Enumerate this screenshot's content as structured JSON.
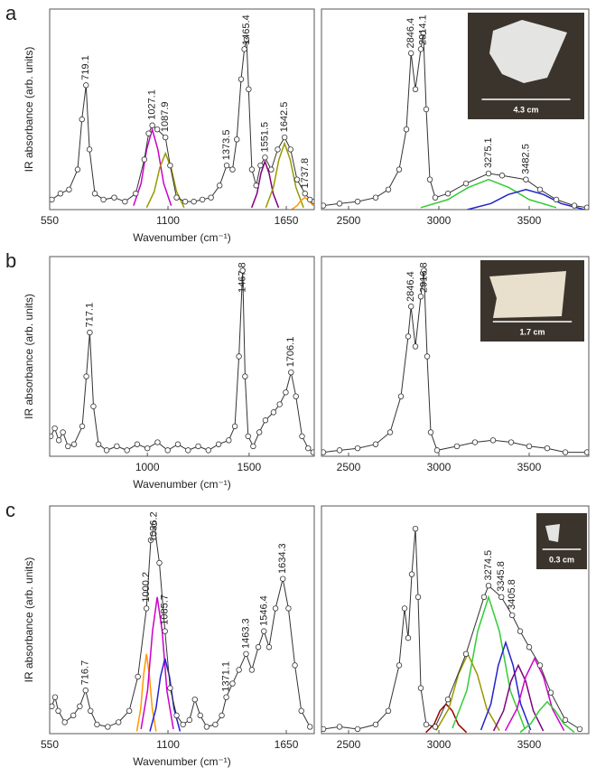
{
  "chart_data": [
    {
      "type": "line",
      "panel": "a",
      "ylabel": "IR absorbance (arb. units)",
      "xlabel": "Wavenumber (cm⁻¹)",
      "color": "#333333",
      "xlim": [
        550,
        1780
      ],
      "xticks": [
        550,
        1100,
        1650
      ],
      "ylim": [
        0,
        1
      ],
      "x": [
        560,
        600,
        640,
        680,
        700,
        719,
        735,
        760,
        800,
        850,
        900,
        950,
        990,
        1010,
        1027,
        1050,
        1088,
        1110,
        1140,
        1180,
        1220,
        1260,
        1300,
        1340,
        1373,
        1400,
        1420,
        1440,
        1455,
        1465,
        1475,
        1490,
        1510,
        1530,
        1551,
        1580,
        1610,
        1642,
        1670,
        1700,
        1737,
        1760,
        1780
      ],
      "values": [
        0.05,
        0.08,
        0.1,
        0.2,
        0.45,
        0.62,
        0.3,
        0.08,
        0.05,
        0.06,
        0.04,
        0.08,
        0.25,
        0.38,
        0.42,
        0.4,
        0.36,
        0.22,
        0.06,
        0.04,
        0.04,
        0.05,
        0.06,
        0.12,
        0.22,
        0.2,
        0.35,
        0.65,
        0.8,
        0.85,
        0.6,
        0.2,
        0.12,
        0.22,
        0.26,
        0.2,
        0.3,
        0.36,
        0.3,
        0.15,
        0.08,
        0.05,
        0.04
      ],
      "peaks": [
        719.1,
        1027.1,
        1087.9,
        1373.5,
        1465.4,
        1551.5,
        1642.5,
        1737.8
      ],
      "components": [
        {
          "color": "#cc00cc",
          "x": [
            940,
            975,
            1001,
            1027,
            1053,
            1080,
            1115
          ],
          "values": [
            0.02,
            0.13,
            0.3,
            0.4,
            0.3,
            0.13,
            0.02
          ]
        },
        {
          "color": "#999900",
          "x": [
            1001,
            1036,
            1062,
            1088,
            1114,
            1140,
            1175
          ],
          "values": [
            0.01,
            0.09,
            0.21,
            0.28,
            0.21,
            0.09,
            0.01
          ]
        },
        {
          "color": "#800080",
          "x": [
            1489,
            1514,
            1532,
            1551,
            1570,
            1589,
            1614
          ],
          "values": [
            0.01,
            0.08,
            0.18,
            0.24,
            0.18,
            0.08,
            0.01
          ]
        },
        {
          "color": "#999900",
          "x": [
            1555,
            1590,
            1616,
            1642,
            1668,
            1695,
            1730
          ],
          "values": [
            0.01,
            0.11,
            0.25,
            0.33,
            0.25,
            0.11,
            0.01
          ]
        },
        {
          "color": "#ff9900",
          "x": [
            1675,
            1700,
            1718,
            1737,
            1756,
            1775
          ],
          "values": [
            0,
            0.02,
            0.045,
            0.06,
            0.045,
            0.02
          ]
        }
      ]
    },
    {
      "type": "line",
      "color": "#333333",
      "xlim": [
        2350,
        3830
      ],
      "xticks": [
        2500,
        3000,
        3500
      ],
      "ylim": [
        0,
        1
      ],
      "inset_label": "4.3 cm",
      "x": [
        2360,
        2450,
        2550,
        2650,
        2720,
        2780,
        2820,
        2846,
        2870,
        2900,
        2914,
        2930,
        2950,
        2980,
        3050,
        3150,
        3275,
        3350,
        3482,
        3560,
        3650,
        3750,
        3820
      ],
      "values": [
        0.02,
        0.03,
        0.04,
        0.06,
        0.1,
        0.2,
        0.4,
        0.78,
        0.6,
        0.8,
        0.88,
        0.5,
        0.15,
        0.06,
        0.08,
        0.13,
        0.18,
        0.17,
        0.15,
        0.1,
        0.05,
        0.02,
        0.01
      ],
      "peaks": [
        2846.4,
        2914.1,
        3275.1,
        3482.5
      ],
      "components": [
        {
          "color": "#33cc33",
          "x": [
            2900,
            3050,
            3162,
            3275,
            3388,
            3500,
            3650
          ],
          "values": [
            0.01,
            0.05,
            0.11,
            0.15,
            0.11,
            0.05,
            0.01
          ]
        },
        {
          "color": "#2222cc",
          "x": [
            3157,
            3287,
            3384,
            3482,
            3580,
            3677,
            3807
          ],
          "values": [
            0,
            0.03,
            0.075,
            0.1,
            0.075,
            0.03,
            0
          ]
        }
      ]
    },
    {
      "type": "line",
      "panel": "b",
      "ylabel": "IR absorbance (arb. units)",
      "xlabel": "Wavenumber (cm⁻¹)",
      "color": "#333333",
      "xlim": [
        520,
        1820
      ],
      "xticks": [
        1000,
        1500
      ],
      "ylim": [
        0,
        1
      ],
      "x": [
        525,
        545,
        565,
        585,
        610,
        640,
        680,
        700,
        717,
        735,
        760,
        800,
        850,
        900,
        950,
        1000,
        1050,
        1100,
        1150,
        1200,
        1250,
        1300,
        1350,
        1400,
        1430,
        1450,
        1468,
        1480,
        1495,
        1520,
        1550,
        1580,
        1620,
        1650,
        1680,
        1706,
        1730,
        1760,
        1790,
        1815
      ],
      "values": [
        0.1,
        0.14,
        0.08,
        0.12,
        0.05,
        0.06,
        0.15,
        0.4,
        0.62,
        0.25,
        0.06,
        0.03,
        0.05,
        0.03,
        0.06,
        0.04,
        0.07,
        0.03,
        0.06,
        0.03,
        0.05,
        0.03,
        0.06,
        0.08,
        0.15,
        0.5,
        0.93,
        0.4,
        0.1,
        0.05,
        0.12,
        0.18,
        0.22,
        0.26,
        0.32,
        0.42,
        0.3,
        0.1,
        0.04,
        0.02
      ],
      "peaks": [
        717.1,
        1467.8,
        1706.1
      ]
    },
    {
      "type": "line",
      "color": "#333333",
      "xlim": [
        2350,
        3830
      ],
      "xticks": [
        2500,
        3000,
        3500
      ],
      "ylim": [
        0,
        1
      ],
      "inset_label": "1.7 cm",
      "x": [
        2360,
        2450,
        2550,
        2650,
        2730,
        2790,
        2830,
        2846,
        2870,
        2900,
        2917,
        2935,
        2955,
        2990,
        3100,
        3200,
        3300,
        3400,
        3500,
        3600,
        3700,
        3820
      ],
      "values": [
        0.02,
        0.03,
        0.04,
        0.06,
        0.12,
        0.3,
        0.6,
        0.75,
        0.55,
        0.8,
        0.93,
        0.5,
        0.12,
        0.03,
        0.05,
        0.07,
        0.08,
        0.07,
        0.05,
        0.04,
        0.02,
        0.02
      ],
      "peaks": [
        2846.4,
        2916.8
      ]
    },
    {
      "type": "line",
      "panel": "c",
      "ylabel": "IR absorbance (arb. units)",
      "xlabel": "Wavenumber (cm⁻¹)",
      "color": "#333333",
      "xlim": [
        550,
        1780
      ],
      "xticks": [
        550,
        1100,
        1650
      ],
      "ylim": [
        0,
        1
      ],
      "x": [
        560,
        575,
        590,
        620,
        660,
        690,
        717,
        740,
        770,
        820,
        870,
        920,
        960,
        1000,
        1020,
        1036,
        1060,
        1086,
        1110,
        1140,
        1170,
        1200,
        1225,
        1250,
        1280,
        1320,
        1350,
        1371,
        1400,
        1430,
        1463,
        1490,
        1520,
        1546,
        1570,
        1600,
        1634,
        1660,
        1690,
        1720,
        1760
      ],
      "values": [
        0.12,
        0.16,
        0.1,
        0.05,
        0.08,
        0.12,
        0.19,
        0.1,
        0.04,
        0.03,
        0.05,
        0.1,
        0.25,
        0.55,
        0.85,
        0.92,
        0.75,
        0.45,
        0.2,
        0.08,
        0.04,
        0.06,
        0.15,
        0.08,
        0.03,
        0.04,
        0.08,
        0.16,
        0.22,
        0.28,
        0.35,
        0.28,
        0.38,
        0.45,
        0.38,
        0.55,
        0.68,
        0.55,
        0.3,
        0.1,
        0.03
      ],
      "peaks": [
        716.7,
        1000.2,
        1036.2,
        1085.7,
        1371.1,
        1463.3,
        1546.4,
        1634.3
      ],
      "components": [
        {
          "color": "#ff9900",
          "x": [
            955,
            973,
            987,
            1000,
            1013,
            1027,
            1045
          ],
          "values": [
            0.01,
            0.11,
            0.26,
            0.35,
            0.26,
            0.11,
            0.01
          ]
        },
        {
          "color": "#cc00cc",
          "x": [
            975,
            1005,
            1028,
            1050,
            1073,
            1095,
            1125
          ],
          "values": [
            0.02,
            0.19,
            0.45,
            0.6,
            0.45,
            0.19,
            0.02
          ]
        },
        {
          "color": "#2222cc",
          "x": [
            1016,
            1044,
            1065,
            1086,
            1107,
            1128,
            1156
          ],
          "values": [
            0.01,
            0.11,
            0.25,
            0.33,
            0.25,
            0.11,
            0.01
          ]
        }
      ]
    },
    {
      "type": "line",
      "color": "#333333",
      "xlim": [
        2350,
        3830
      ],
      "xticks": [
        2500,
        3000,
        3500
      ],
      "ylim": [
        0,
        1
      ],
      "inset_label": "0.3 cm",
      "x": [
        2360,
        2450,
        2550,
        2650,
        2720,
        2780,
        2810,
        2830,
        2850,
        2870,
        2885,
        2900,
        2930,
        2980,
        3050,
        3150,
        3250,
        3275,
        3346,
        3406,
        3450,
        3500,
        3560,
        3620,
        3700,
        3780
      ],
      "values": [
        0.02,
        0.03,
        0.02,
        0.04,
        0.1,
        0.3,
        0.55,
        0.42,
        0.7,
        0.9,
        0.6,
        0.2,
        0.04,
        0.03,
        0.15,
        0.35,
        0.6,
        0.65,
        0.6,
        0.52,
        0.45,
        0.38,
        0.3,
        0.18,
        0.06,
        0.02
      ],
      "peaks": [
        3274.5,
        3345.8,
        3405.8
      ],
      "components": [
        {
          "color": "#990000",
          "x": [
            2928,
            2973,
            3006,
            3040,
            3074,
            3108,
            3153
          ],
          "values": [
            0.005,
            0.04,
            0.1,
            0.13,
            0.1,
            0.04,
            0.005
          ]
        },
        {
          "color": "#999900",
          "x": [
            2985,
            3055,
            3108,
            3160,
            3213,
            3265,
            3335
          ],
          "values": [
            0.014,
            0.11,
            0.26,
            0.35,
            0.26,
            0.11,
            0.014
          ]
        },
        {
          "color": "#33cc33",
          "x": [
            3075,
            3155,
            3215,
            3275,
            3335,
            3395,
            3475
          ],
          "values": [
            0.024,
            0.19,
            0.45,
            0.6,
            0.45,
            0.19,
            0.024
          ]
        },
        {
          "color": "#2222cc",
          "x": [
            3233,
            3288,
            3329,
            3370,
            3411,
            3453,
            3508
          ],
          "values": [
            0.016,
            0.13,
            0.3,
            0.4,
            0.3,
            0.13,
            0.016
          ]
        },
        {
          "color": "#800080",
          "x": [
            3303,
            3358,
            3399,
            3440,
            3481,
            3523,
            3578
          ],
          "values": [
            0.012,
            0.1,
            0.23,
            0.3,
            0.23,
            0.1,
            0.012
          ]
        },
        {
          "color": "#cc00cc",
          "x": [
            3368,
            3433,
            3481,
            3530,
            3579,
            3628,
            3693
          ],
          "values": [
            0.013,
            0.11,
            0.25,
            0.33,
            0.25,
            0.11,
            0.013
          ]
        },
        {
          "color": "#33cc33",
          "x": [
            3450,
            3510,
            3555,
            3600,
            3645,
            3690,
            3750
          ],
          "values": [
            0.006,
            0.045,
            0.1,
            0.14,
            0.1,
            0.045,
            0.006
          ]
        }
      ]
    }
  ]
}
